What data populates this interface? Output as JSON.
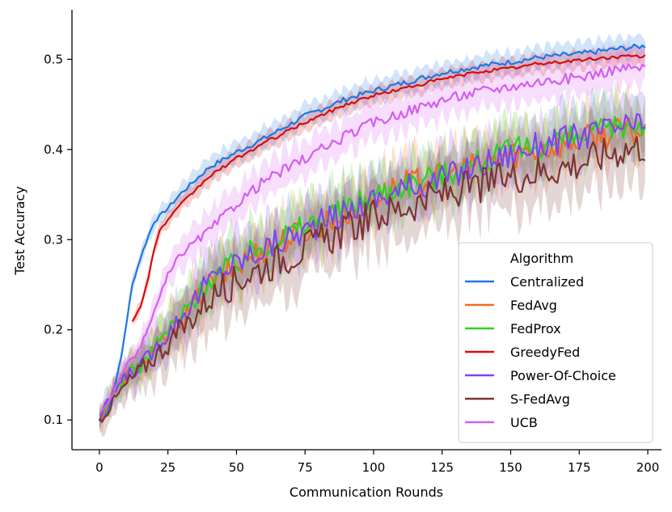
{
  "chart_data": {
    "type": "line",
    "title": "",
    "xlabel": "Communication Rounds",
    "ylabel": "Test Accuracy",
    "xlim": [
      -10,
      205
    ],
    "ylim": [
      0.067,
      0.555
    ],
    "xticks": [
      0,
      25,
      50,
      75,
      100,
      125,
      150,
      175,
      200
    ],
    "yticks": [
      0.1,
      0.2,
      0.3,
      0.4,
      0.5
    ],
    "ytick_labels": [
      "0.1",
      "0.2",
      "0.3",
      "0.4",
      "0.5"
    ],
    "grid": false,
    "legend": {
      "title": "Algorithm",
      "placement": "lower-right"
    },
    "series": [
      {
        "name": "Centralized",
        "color": "#1f77e4",
        "band": 0.012,
        "noise": 0.003,
        "x": [
          0,
          3,
          5,
          8,
          10,
          12,
          15,
          18,
          20,
          25,
          30,
          40,
          50,
          60,
          75,
          90,
          100,
          110,
          125,
          140,
          150,
          160,
          175,
          190,
          200
        ],
        "y": [
          0.1,
          0.11,
          0.13,
          0.17,
          0.21,
          0.25,
          0.28,
          0.305,
          0.32,
          0.335,
          0.352,
          0.38,
          0.397,
          0.412,
          0.437,
          0.456,
          0.465,
          0.473,
          0.485,
          0.493,
          0.497,
          0.502,
          0.506,
          0.512,
          0.515
        ]
      },
      {
        "name": "FedAvg",
        "color": "#f36a1d",
        "band": 0.03,
        "noise": 0.016,
        "x": [
          0,
          5,
          10,
          15,
          20,
          25,
          30,
          40,
          50,
          60,
          75,
          90,
          100,
          110,
          125,
          140,
          150,
          160,
          175,
          190,
          200
        ],
        "y": [
          0.1,
          0.13,
          0.15,
          0.16,
          0.175,
          0.195,
          0.21,
          0.25,
          0.27,
          0.29,
          0.31,
          0.33,
          0.345,
          0.36,
          0.37,
          0.385,
          0.395,
          0.4,
          0.41,
          0.42,
          0.42
        ]
      },
      {
        "name": "FedProx",
        "color": "#2bd41a",
        "band": 0.03,
        "noise": 0.015,
        "x": [
          0,
          5,
          10,
          15,
          20,
          25,
          30,
          40,
          50,
          60,
          75,
          90,
          100,
          110,
          125,
          140,
          150,
          160,
          175,
          190,
          200
        ],
        "y": [
          0.1,
          0.13,
          0.15,
          0.16,
          0.18,
          0.2,
          0.215,
          0.255,
          0.275,
          0.295,
          0.315,
          0.335,
          0.35,
          0.36,
          0.372,
          0.388,
          0.397,
          0.405,
          0.413,
          0.425,
          0.43
        ]
      },
      {
        "name": "GreedyFed",
        "color": "#d90d0d",
        "band": 0.01,
        "noise": 0.002,
        "x_start": 12,
        "x": [
          12,
          15,
          18,
          20,
          22,
          25,
          30,
          40,
          50,
          60,
          75,
          90,
          100,
          110,
          125,
          140,
          150,
          160,
          175,
          190,
          200
        ],
        "y": [
          0.21,
          0.225,
          0.26,
          0.29,
          0.31,
          0.322,
          0.34,
          0.37,
          0.39,
          0.407,
          0.43,
          0.45,
          0.46,
          0.467,
          0.478,
          0.487,
          0.49,
          0.495,
          0.499,
          0.503,
          0.503
        ]
      },
      {
        "name": "Power-Of-Choice",
        "color": "#7a46f4",
        "band": 0.03,
        "noise": 0.016,
        "x": [
          0,
          5,
          10,
          15,
          20,
          25,
          30,
          40,
          50,
          60,
          75,
          90,
          100,
          110,
          125,
          140,
          150,
          160,
          175,
          190,
          200
        ],
        "y": [
          0.1,
          0.13,
          0.15,
          0.16,
          0.178,
          0.198,
          0.215,
          0.255,
          0.275,
          0.29,
          0.31,
          0.33,
          0.345,
          0.355,
          0.368,
          0.385,
          0.395,
          0.405,
          0.415,
          0.425,
          0.425
        ]
      },
      {
        "name": "S-FedAvg",
        "color": "#7b3434",
        "band": 0.035,
        "noise": 0.02,
        "x": [
          0,
          5,
          10,
          15,
          20,
          25,
          30,
          40,
          50,
          60,
          75,
          90,
          100,
          110,
          125,
          140,
          150,
          160,
          175,
          190,
          200
        ],
        "y": [
          0.1,
          0.12,
          0.14,
          0.155,
          0.17,
          0.185,
          0.2,
          0.235,
          0.255,
          0.27,
          0.29,
          0.31,
          0.325,
          0.335,
          0.35,
          0.36,
          0.37,
          0.375,
          0.385,
          0.4,
          0.405
        ]
      },
      {
        "name": "UCB",
        "color": "#d65cf0",
        "band": 0.02,
        "noise": 0.006,
        "x": [
          0,
          5,
          10,
          15,
          20,
          25,
          30,
          40,
          50,
          60,
          75,
          90,
          100,
          110,
          125,
          140,
          150,
          160,
          175,
          190,
          200
        ],
        "y": [
          0.105,
          0.13,
          0.16,
          0.18,
          0.22,
          0.26,
          0.285,
          0.31,
          0.34,
          0.365,
          0.39,
          0.415,
          0.43,
          0.44,
          0.455,
          0.465,
          0.47,
          0.475,
          0.48,
          0.49,
          0.49
        ]
      }
    ]
  }
}
